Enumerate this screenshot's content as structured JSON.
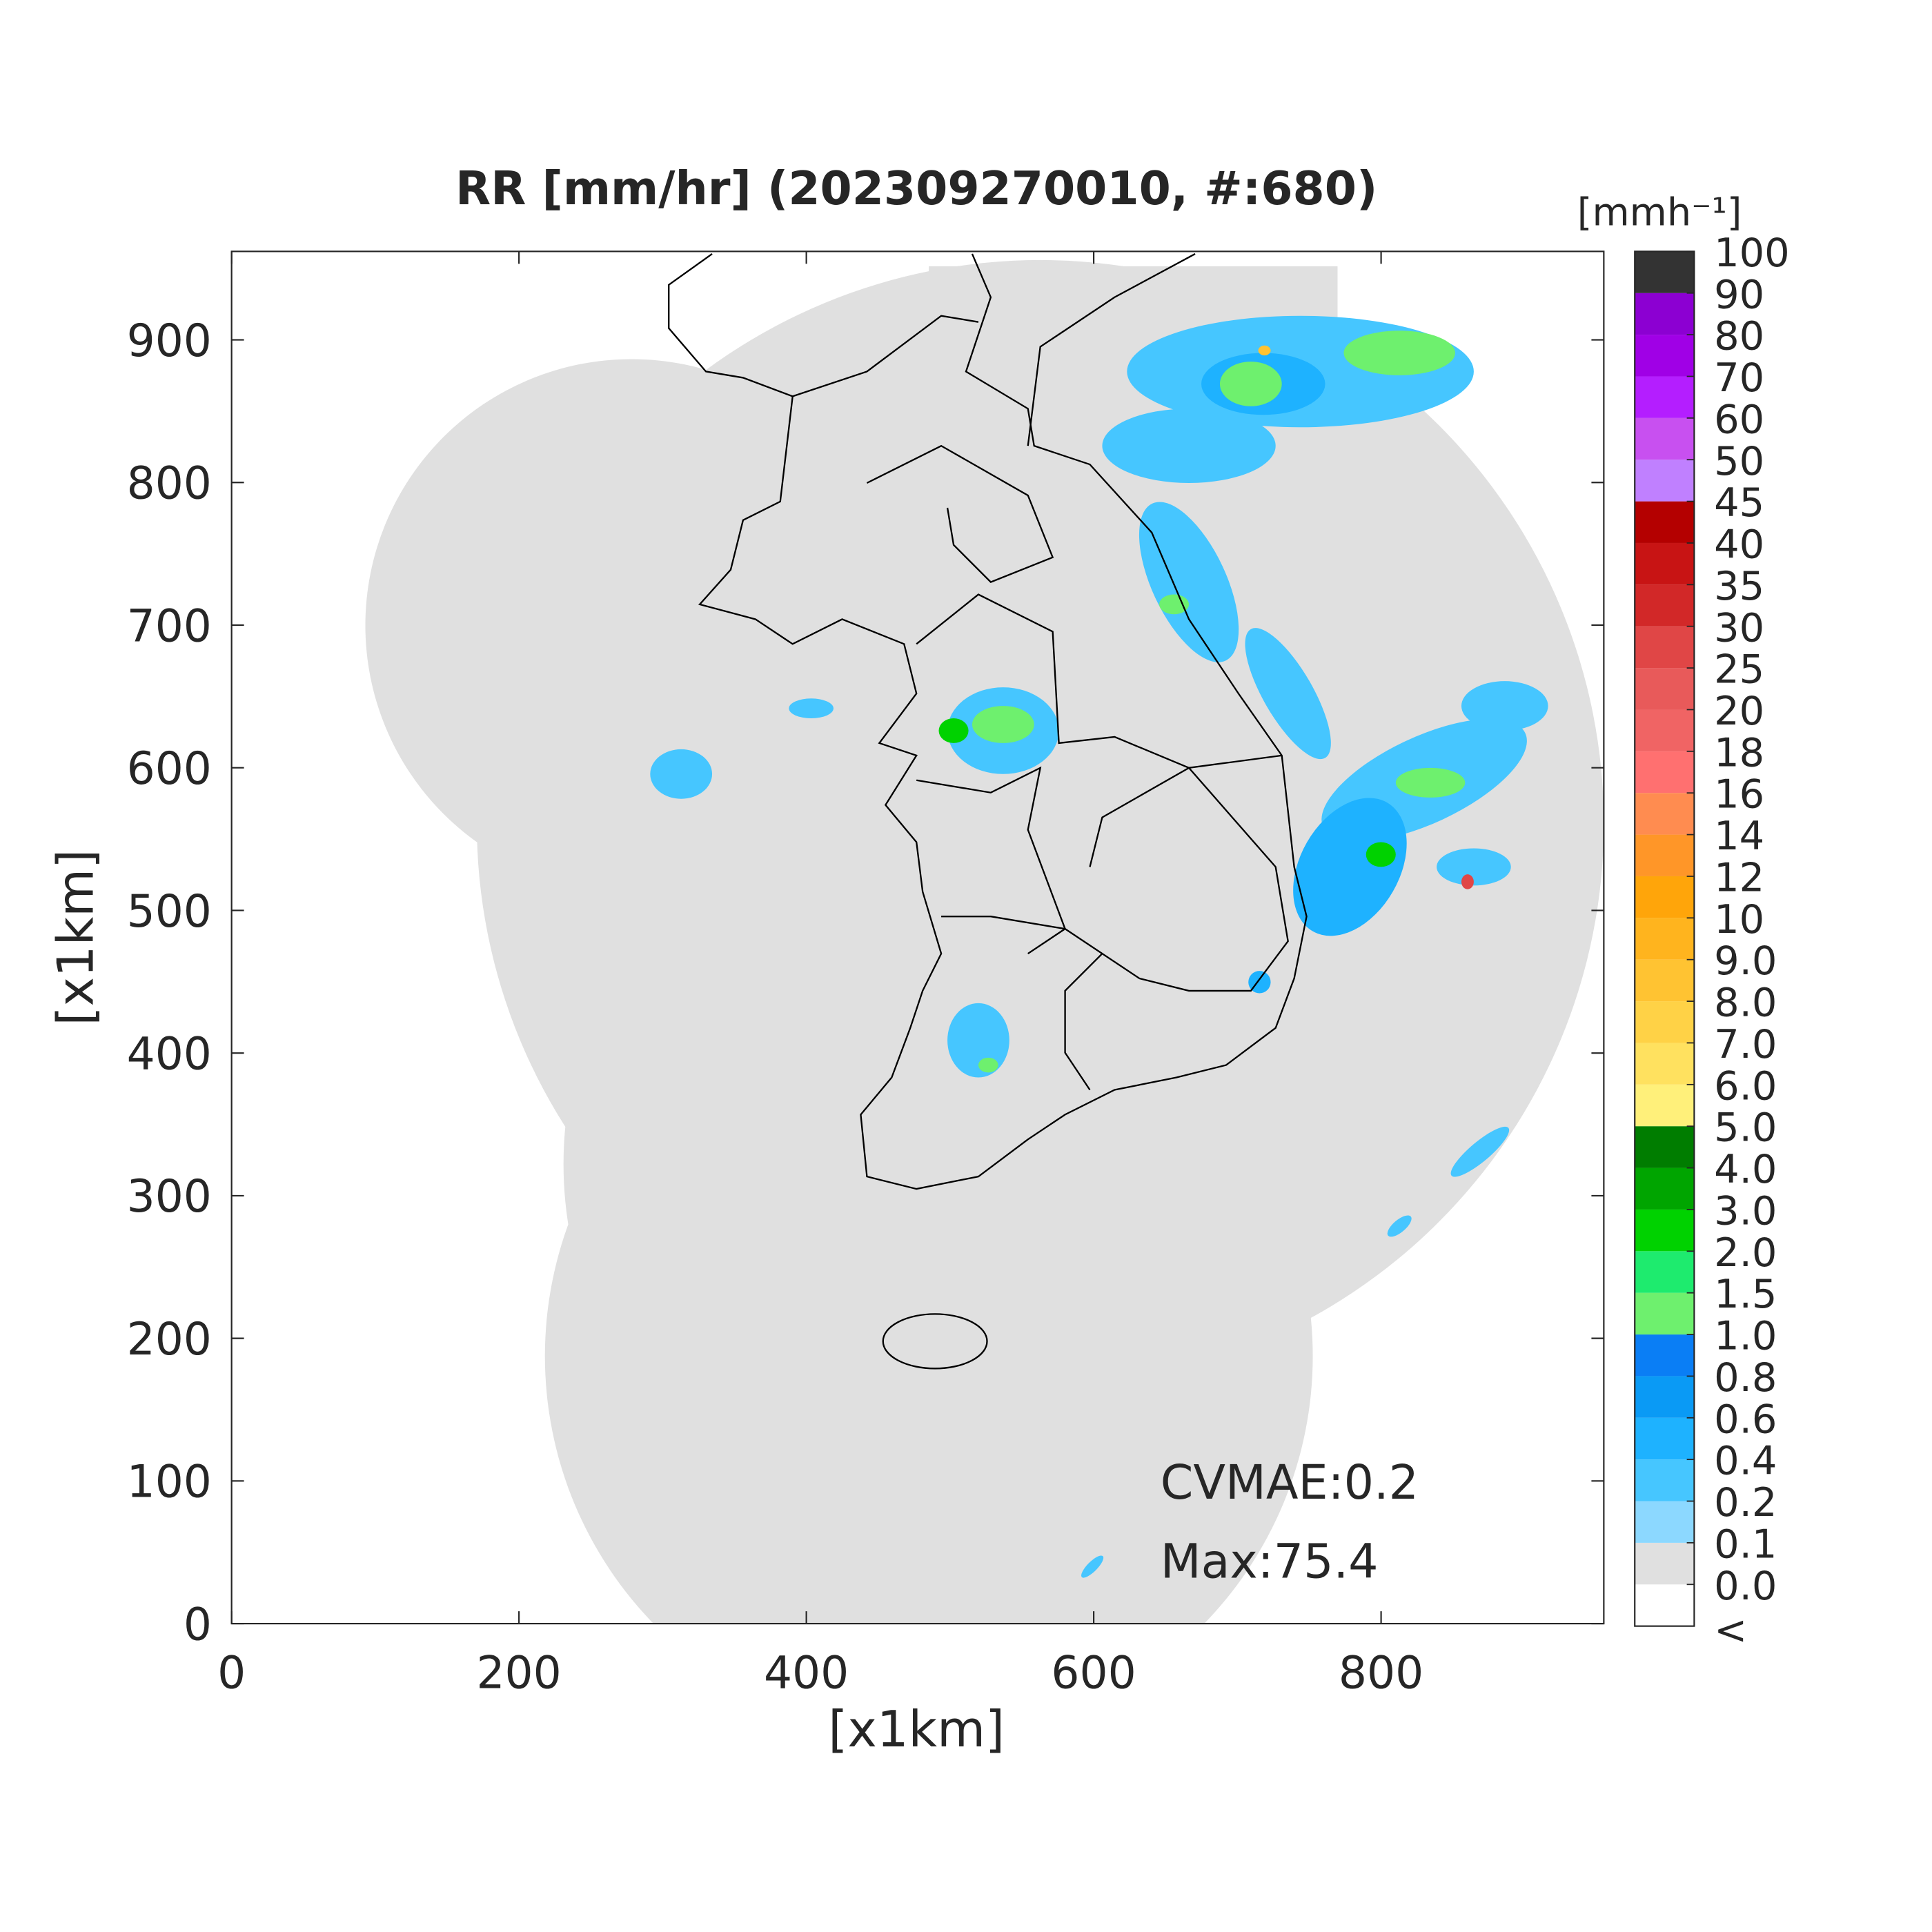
{
  "chart_data": {
    "type": "map",
    "title": "RR [mm/hr] (202309270010, #:680)",
    "xlabel": "[x1km]",
    "ylabel": "[x1km]",
    "xlim": [
      0,
      955
    ],
    "ylim": [
      0,
      962
    ],
    "xticks": [
      0,
      200,
      400,
      600,
      800
    ],
    "yticks": [
      0,
      100,
      200,
      300,
      400,
      500,
      600,
      700,
      800,
      900
    ],
    "annotations": [
      "CVMAE:0.2",
      "Max:75.4"
    ],
    "colorbar": {
      "unit": "[mmh⁻¹]",
      "under_label": "<",
      "ticks": [
        {
          "value": 0,
          "label": "0.0"
        },
        0.1,
        0.2,
        0.4,
        0.6,
        0.8,
        {
          "value": 1,
          "label": "1.0"
        },
        1.5,
        {
          "value": 2,
          "label": "2.0"
        },
        {
          "value": 3,
          "label": "3.0"
        },
        {
          "value": 4,
          "label": "4.0"
        },
        {
          "value": 5,
          "label": "5.0"
        },
        {
          "value": 6,
          "label": "6.0"
        },
        {
          "value": 7,
          "label": "7.0"
        },
        {
          "value": 8,
          "label": "8.0"
        },
        {
          "value": 9,
          "label": "9.0"
        },
        10,
        12,
        14,
        16,
        18,
        20,
        25,
        30,
        35,
        40,
        45,
        50,
        60,
        70,
        80,
        90,
        100
      ],
      "colors": [
        "#ffffff",
        "#e0e0e0",
        "#8cd8ff",
        "#46c6ff",
        "#1eb2ff",
        "#0a9af5",
        "#0a7ef5",
        "#6ef06e",
        "#1eeb6e",
        "#00d200",
        "#00a500",
        "#007d00",
        "#fff07a",
        "#ffe15f",
        "#ffd246",
        "#ffc332",
        "#ffb41e",
        "#ffa50a",
        "#ff9628",
        "#ff8c50",
        "#ff7070",
        "#f06464",
        "#e85a5a",
        "#e04646",
        "#d22828",
        "#c81414",
        "#b40000",
        "#c080ff",
        "#c850f0",
        "#b41eff",
        "#a000e6",
        "#8c00d2",
        "#333333"
      ]
    }
  }
}
